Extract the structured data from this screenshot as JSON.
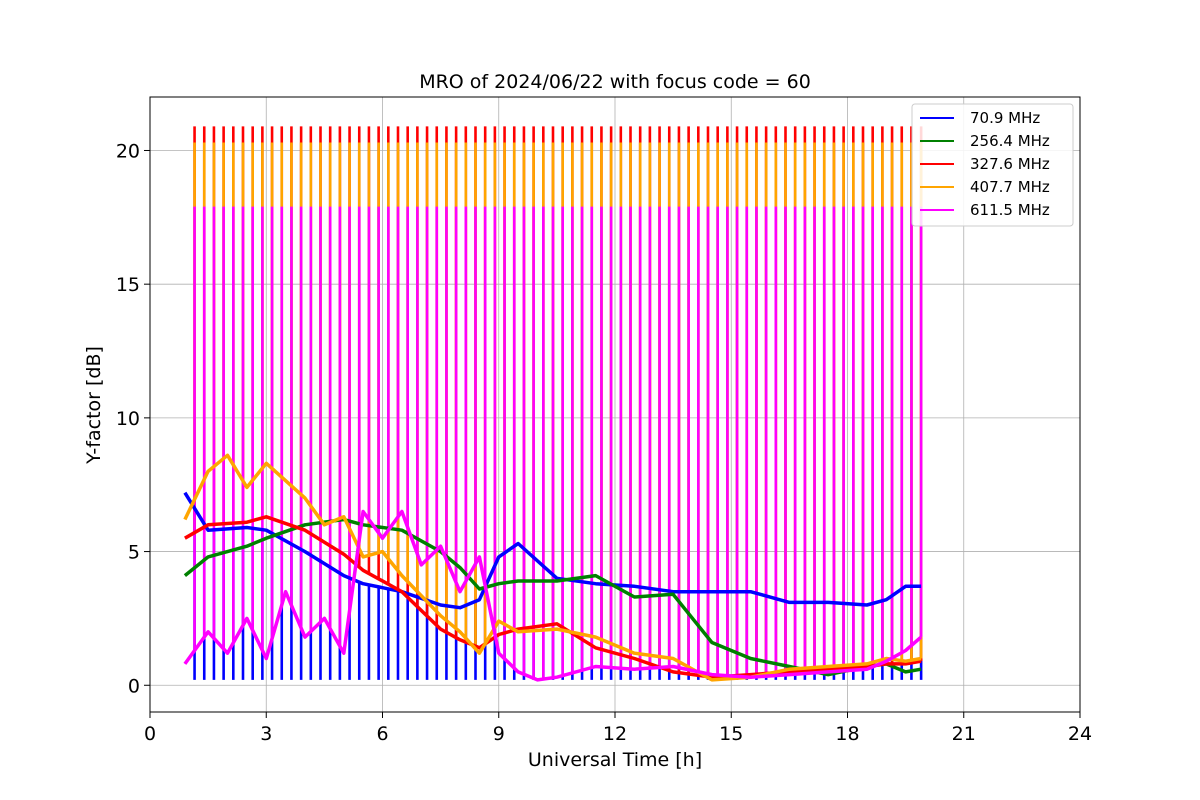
{
  "chart_data": {
    "type": "line",
    "title": "MRO of 2024/06/22 with focus code = 60",
    "xlabel": "Universal Time [h]",
    "ylabel": "Y-factor [dB]",
    "xlim": [
      0,
      24
    ],
    "ylim": [
      -1,
      22
    ],
    "xticks": [
      0,
      3,
      6,
      9,
      12,
      15,
      18,
      21,
      24
    ],
    "yticks": [
      0,
      5,
      10,
      15,
      20
    ],
    "grid": true,
    "legend_position": "top-right",
    "data_start_hour": 0.9,
    "data_end_hour": 19.9,
    "series": [
      {
        "name": "70.9 MHz",
        "color": "#0000ff",
        "x": [
          0.9,
          1.5,
          2.5,
          3.0,
          4.0,
          5.0,
          5.5,
          6.5,
          7.5,
          8.0,
          8.5,
          9.0,
          9.5,
          10.5,
          11.5,
          12.5,
          13.5,
          14.5,
          15.5,
          16.5,
          17.5,
          18.5,
          19.0,
          19.5,
          19.9
        ],
        "values": [
          7.2,
          5.8,
          5.9,
          5.8,
          5.0,
          4.1,
          3.8,
          3.5,
          3.0,
          2.9,
          3.2,
          4.8,
          5.3,
          4.0,
          3.8,
          3.7,
          3.5,
          3.5,
          3.5,
          3.1,
          3.1,
          3.0,
          3.2,
          3.7,
          3.7
        ]
      },
      {
        "name": "256.4 MHz",
        "color": "#008000",
        "x": [
          0.9,
          1.5,
          2.5,
          3.0,
          4.0,
          5.0,
          5.5,
          6.5,
          7.5,
          8.0,
          8.5,
          9.0,
          9.5,
          10.5,
          11.5,
          12.5,
          13.5,
          14.5,
          15.5,
          16.5,
          17.5,
          18.5,
          19.0,
          19.5,
          19.9
        ],
        "values": [
          4.1,
          4.8,
          5.2,
          5.5,
          6.0,
          6.2,
          6.0,
          5.8,
          5.0,
          4.4,
          3.6,
          3.8,
          3.9,
          3.9,
          4.1,
          3.3,
          3.4,
          1.6,
          1.0,
          0.7,
          0.4,
          0.7,
          0.8,
          0.5,
          0.6
        ]
      },
      {
        "name": "327.6 MHz",
        "color": "#ff0000",
        "x": [
          0.9,
          1.5,
          2.5,
          3.0,
          4.0,
          5.0,
          5.5,
          6.5,
          7.5,
          8.0,
          8.5,
          9.0,
          9.5,
          10.5,
          11.5,
          12.5,
          13.5,
          14.5,
          15.5,
          16.5,
          17.5,
          18.5,
          19.0,
          19.5,
          19.9
        ],
        "values": [
          5.5,
          6.0,
          6.1,
          6.3,
          5.8,
          4.9,
          4.3,
          3.5,
          2.1,
          1.7,
          1.4,
          1.9,
          2.1,
          2.3,
          1.4,
          1.0,
          0.5,
          0.3,
          0.4,
          0.5,
          0.6,
          0.7,
          0.8,
          0.8,
          0.9
        ]
      },
      {
        "name": "407.7 MHz",
        "color": "#ffa500",
        "x": [
          0.9,
          1.5,
          2.0,
          2.5,
          3.0,
          4.0,
          4.5,
          5.0,
          5.5,
          6.0,
          6.5,
          7.5,
          8.0,
          8.5,
          9.0,
          9.5,
          10.5,
          11.5,
          12.5,
          13.5,
          14.5,
          15.5,
          16.5,
          17.5,
          18.5,
          19.0,
          19.5,
          19.9
        ],
        "values": [
          6.2,
          8.0,
          8.6,
          7.4,
          8.3,
          7.0,
          6.0,
          6.3,
          4.8,
          5.0,
          4.1,
          2.6,
          2.0,
          1.2,
          2.4,
          2.0,
          2.1,
          1.8,
          1.2,
          1.0,
          0.2,
          0.3,
          0.6,
          0.7,
          0.8,
          1.0,
          0.9,
          1.0
        ]
      },
      {
        "name": "611.5 MHz",
        "color": "#ff00ff",
        "x": [
          0.9,
          1.5,
          2.0,
          2.5,
          3.0,
          3.5,
          4.0,
          4.5,
          5.0,
          5.5,
          6.0,
          6.5,
          7.0,
          7.5,
          8.0,
          8.5,
          9.0,
          9.5,
          10.0,
          10.5,
          11.5,
          12.5,
          13.5,
          14.5,
          15.5,
          16.5,
          17.5,
          18.5,
          19.0,
          19.5,
          19.9
        ],
        "values": [
          0.8,
          2.0,
          1.2,
          2.5,
          1.0,
          3.5,
          1.8,
          2.5,
          1.2,
          6.5,
          5.5,
          6.5,
          4.5,
          5.2,
          3.5,
          4.8,
          1.2,
          0.5,
          0.2,
          0.3,
          0.7,
          0.6,
          0.7,
          0.4,
          0.3,
          0.4,
          0.5,
          0.6,
          0.9,
          1.3,
          1.8
        ]
      }
    ],
    "calibration_spikes": {
      "start_hour": 1.15,
      "interval_hour": 0.25,
      "end_hour": 19.9,
      "peaks": [
        {
          "series": "327.6 MHz",
          "value": 20.9
        },
        {
          "series": "407.7 MHz",
          "value": 20.3
        },
        {
          "series": "611.5 MHz",
          "value": 17.9
        },
        {
          "series": "70.9 MHz",
          "value": 0.2
        }
      ]
    }
  }
}
